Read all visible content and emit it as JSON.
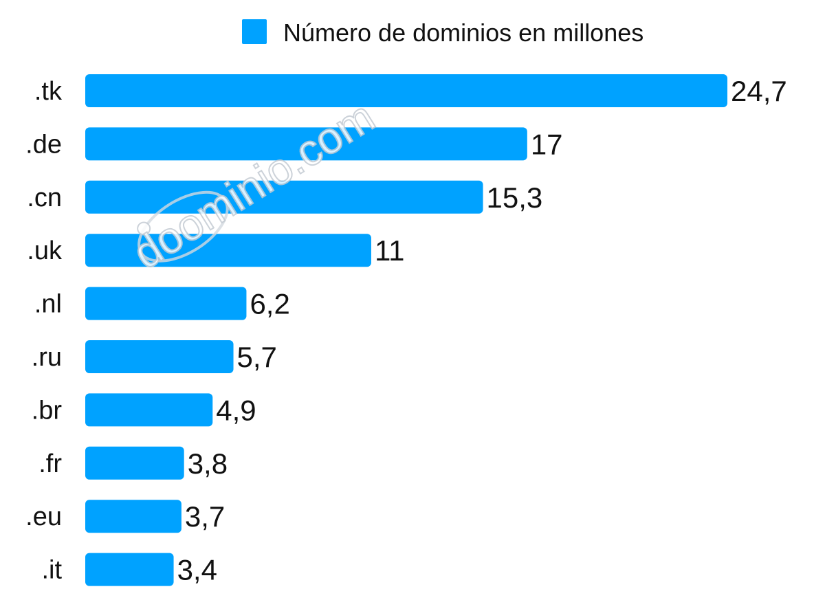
{
  "chart_data": {
    "type": "bar",
    "orientation": "horizontal",
    "categories": [
      ".tk",
      ".de",
      ".cn",
      ".uk",
      ".nl",
      ".ru",
      ".br",
      ".fr",
      ".eu",
      ".it"
    ],
    "series": [
      {
        "name": "Número de dominios en millones",
        "values": [
          24.7,
          17,
          15.3,
          11,
          6.2,
          5.7,
          4.9,
          3.8,
          3.7,
          3.4
        ],
        "labels": [
          "24,7",
          "17",
          "15,3",
          "11",
          "6,2",
          "5,7",
          "4,9",
          "3,8",
          "3,7",
          "3,4"
        ],
        "color": "#00a2ff"
      }
    ],
    "title": "",
    "xlabel": "",
    "ylabel": "",
    "xlim": [
      0,
      24.7
    ],
    "grid": false,
    "legend_position": "top",
    "data_labels": true
  },
  "watermark": {
    "text": "doominio.com"
  }
}
